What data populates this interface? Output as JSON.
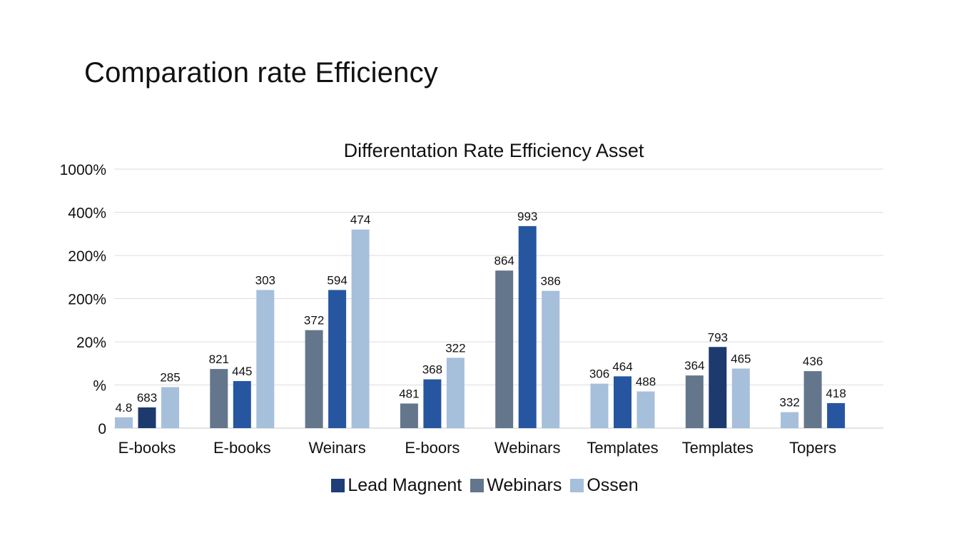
{
  "page_title": "Comparation rate Efficiency",
  "colors": {
    "lead_magnent": "#1f3d78",
    "navy": "#1c3a6e",
    "webinars": "#64768b",
    "blue": "#2656a0",
    "ossen": "#a6bfdb",
    "grid": "#dddddd",
    "text": "#111111"
  },
  "legend": [
    {
      "label": "Lead Magnent",
      "color": "#1f3d78"
    },
    {
      "label": "Webinars",
      "color": "#64768b"
    },
    {
      "label": "Ossen",
      "color": "#a6bfdb"
    }
  ],
  "chart_data": {
    "type": "bar",
    "title": "Differentation Rate Efficiency Asset",
    "xlabel": "",
    "ylabel": "",
    "grid": true,
    "legend_position": "bottom",
    "y_ticks": [
      "1000%",
      "400%",
      "200%",
      "200%",
      "20%",
      "%",
      "0"
    ],
    "categories": [
      "E-books",
      "E-books",
      "Weinars",
      "E-boors",
      "Webinars",
      "Templates",
      "Templates",
      "Topers"
    ],
    "groups": [
      {
        "category": "E-books",
        "bars": [
          {
            "label": "4.8",
            "level": 0.25,
            "color": "#a6bfdb"
          },
          {
            "label": "683",
            "level": 0.48,
            "color": "#1c3a6e"
          },
          {
            "label": "285",
            "level": 0.95,
            "color": "#a6bfdb"
          }
        ]
      },
      {
        "category": "E-books",
        "bars": [
          {
            "label": "821",
            "level": 1.37,
            "color": "#64768b"
          },
          {
            "label": "445",
            "level": 1.09,
            "color": "#2656a0"
          },
          {
            "label": "303",
            "level": 3.2,
            "color": "#a6bfdb"
          }
        ]
      },
      {
        "category": "Weinars",
        "bars": [
          {
            "label": "372",
            "level": 2.27,
            "color": "#64768b"
          },
          {
            "label": "594",
            "level": 3.2,
            "color": "#2656a0"
          },
          {
            "label": "474",
            "level": 4.6,
            "color": "#a6bfdb"
          }
        ]
      },
      {
        "category": "E-boors",
        "bars": [
          {
            "label": "481",
            "level": 0.57,
            "color": "#64768b"
          },
          {
            "label": "368",
            "level": 1.13,
            "color": "#2656a0"
          },
          {
            "label": "322",
            "level": 1.63,
            "color": "#a6bfdb"
          }
        ]
      },
      {
        "category": "Webinars",
        "bars": [
          {
            "label": "864",
            "level": 3.65,
            "color": "#64768b"
          },
          {
            "label": "993",
            "level": 4.68,
            "color": "#2656a0"
          },
          {
            "label": "386",
            "level": 3.18,
            "color": "#a6bfdb"
          }
        ]
      },
      {
        "category": "Templates",
        "bars": [
          {
            "label": "306",
            "level": 1.03,
            "color": "#a6bfdb"
          },
          {
            "label": "464",
            "level": 1.2,
            "color": "#2656a0"
          },
          {
            "label": "488",
            "level": 0.85,
            "color": "#a6bfdb"
          }
        ]
      },
      {
        "category": "Templates",
        "bars": [
          {
            "label": "364",
            "level": 1.22,
            "color": "#64768b"
          },
          {
            "label": "793",
            "level": 1.88,
            "color": "#1c3a6e"
          },
          {
            "label": "465",
            "level": 1.38,
            "color": "#a6bfdb"
          }
        ]
      },
      {
        "category": "Topers",
        "bars": [
          {
            "label": "332",
            "level": 0.37,
            "color": "#a6bfdb"
          },
          {
            "label": "436",
            "level": 1.32,
            "color": "#64768b"
          },
          {
            "label": "418",
            "level": 0.58,
            "color": "#2656a0"
          }
        ]
      }
    ]
  }
}
